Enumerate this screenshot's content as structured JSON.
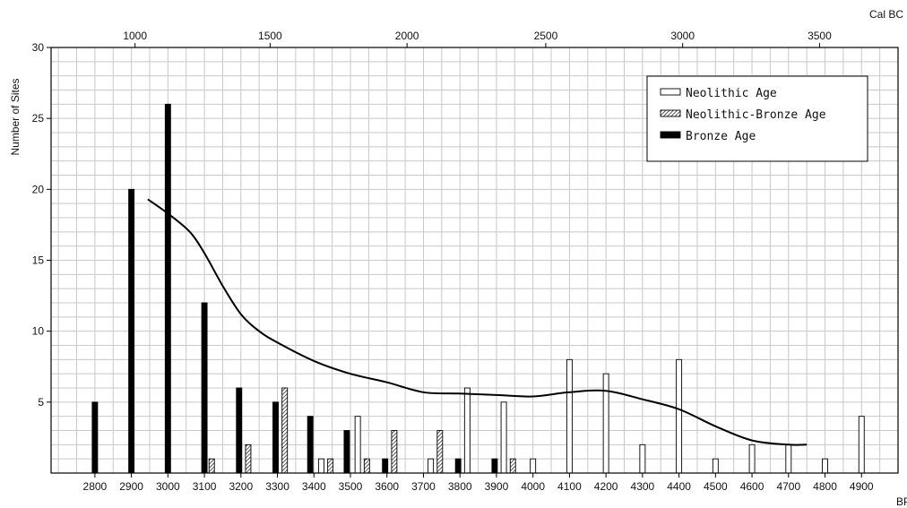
{
  "chart_data": {
    "type": "bar",
    "title": "",
    "ylabel": "Number of Sites",
    "xlabel_bottom": "BP",
    "xlabel_top": "Cal BC",
    "ylim": [
      0,
      30
    ],
    "yticks": [
      "5",
      "10",
      "15",
      "20",
      "25",
      "30"
    ],
    "bp_ticks": [
      "2800",
      "2900",
      "3000",
      "3100",
      "3200",
      "3300",
      "3400",
      "3500",
      "3600",
      "3700",
      "3800",
      "3900",
      "4000",
      "4100",
      "4200",
      "4300",
      "4400",
      "4500",
      "4600",
      "4700",
      "4800",
      "4900"
    ],
    "calbc_ticks": [
      {
        "label": "1000",
        "bp": 2910
      },
      {
        "label": "1500",
        "bp": 3280
      },
      {
        "label": "2000",
        "bp": 3655
      },
      {
        "label": "2500",
        "bp": 4035
      },
      {
        "label": "3000",
        "bp": 4410
      },
      {
        "label": "3500",
        "bp": 4785
      }
    ],
    "series": [
      {
        "name": "Neolithic Age",
        "style": "open",
        "points": [
          {
            "bp": 3420,
            "value": 1
          },
          {
            "bp": 3520,
            "value": 4
          },
          {
            "bp": 3720,
            "value": 1
          },
          {
            "bp": 3820,
            "value": 6
          },
          {
            "bp": 3920,
            "value": 5
          },
          {
            "bp": 4000,
            "value": 1
          },
          {
            "bp": 4100,
            "value": 8
          },
          {
            "bp": 4200,
            "value": 7
          },
          {
            "bp": 4300,
            "value": 2
          },
          {
            "bp": 4400,
            "value": 8
          },
          {
            "bp": 4500,
            "value": 1
          },
          {
            "bp": 4600,
            "value": 2
          },
          {
            "bp": 4700,
            "value": 2
          },
          {
            "bp": 4800,
            "value": 1
          },
          {
            "bp": 4900,
            "value": 4
          }
        ]
      },
      {
        "name": "Neolithic-Bronze Age",
        "style": "hatched",
        "points": [
          {
            "bp": 3120,
            "value": 1
          },
          {
            "bp": 3220,
            "value": 2
          },
          {
            "bp": 3320,
            "value": 6
          },
          {
            "bp": 3445,
            "value": 1
          },
          {
            "bp": 3545,
            "value": 1
          },
          {
            "bp": 3620,
            "value": 3
          },
          {
            "bp": 3745,
            "value": 3
          },
          {
            "bp": 3945,
            "value": 1
          }
        ]
      },
      {
        "name": "Bronze Age",
        "style": "solid",
        "points": [
          {
            "bp": 2800,
            "value": 5
          },
          {
            "bp": 2900,
            "value": 20
          },
          {
            "bp": 3000,
            "value": 26
          },
          {
            "bp": 3100,
            "value": 12
          },
          {
            "bp": 3195,
            "value": 6
          },
          {
            "bp": 3295,
            "value": 5
          },
          {
            "bp": 3390,
            "value": 4
          },
          {
            "bp": 3490,
            "value": 3
          },
          {
            "bp": 3595,
            "value": 1
          },
          {
            "bp": 3795,
            "value": 1
          },
          {
            "bp": 3895,
            "value": 1
          }
        ]
      }
    ],
    "trend_line": [
      {
        "bp": 2945,
        "value": 19.3
      },
      {
        "bp": 3000,
        "value": 18.3
      },
      {
        "bp": 3060,
        "value": 17
      },
      {
        "bp": 3100,
        "value": 15.5
      },
      {
        "bp": 3150,
        "value": 13.2
      },
      {
        "bp": 3200,
        "value": 11.2
      },
      {
        "bp": 3250,
        "value": 10
      },
      {
        "bp": 3300,
        "value": 9.2
      },
      {
        "bp": 3400,
        "value": 7.9
      },
      {
        "bp": 3500,
        "value": 7
      },
      {
        "bp": 3600,
        "value": 6.4
      },
      {
        "bp": 3700,
        "value": 5.7
      },
      {
        "bp": 3800,
        "value": 5.6
      },
      {
        "bp": 3900,
        "value": 5.5
      },
      {
        "bp": 4000,
        "value": 5.4
      },
      {
        "bp": 4100,
        "value": 5.7
      },
      {
        "bp": 4200,
        "value": 5.8
      },
      {
        "bp": 4300,
        "value": 5.2
      },
      {
        "bp": 4400,
        "value": 4.5
      },
      {
        "bp": 4500,
        "value": 3.3
      },
      {
        "bp": 4600,
        "value": 2.3
      },
      {
        "bp": 4700,
        "value": 2.0
      },
      {
        "bp": 4750,
        "value": 2.0
      }
    ],
    "grid": true,
    "legend_position": "top-right"
  }
}
